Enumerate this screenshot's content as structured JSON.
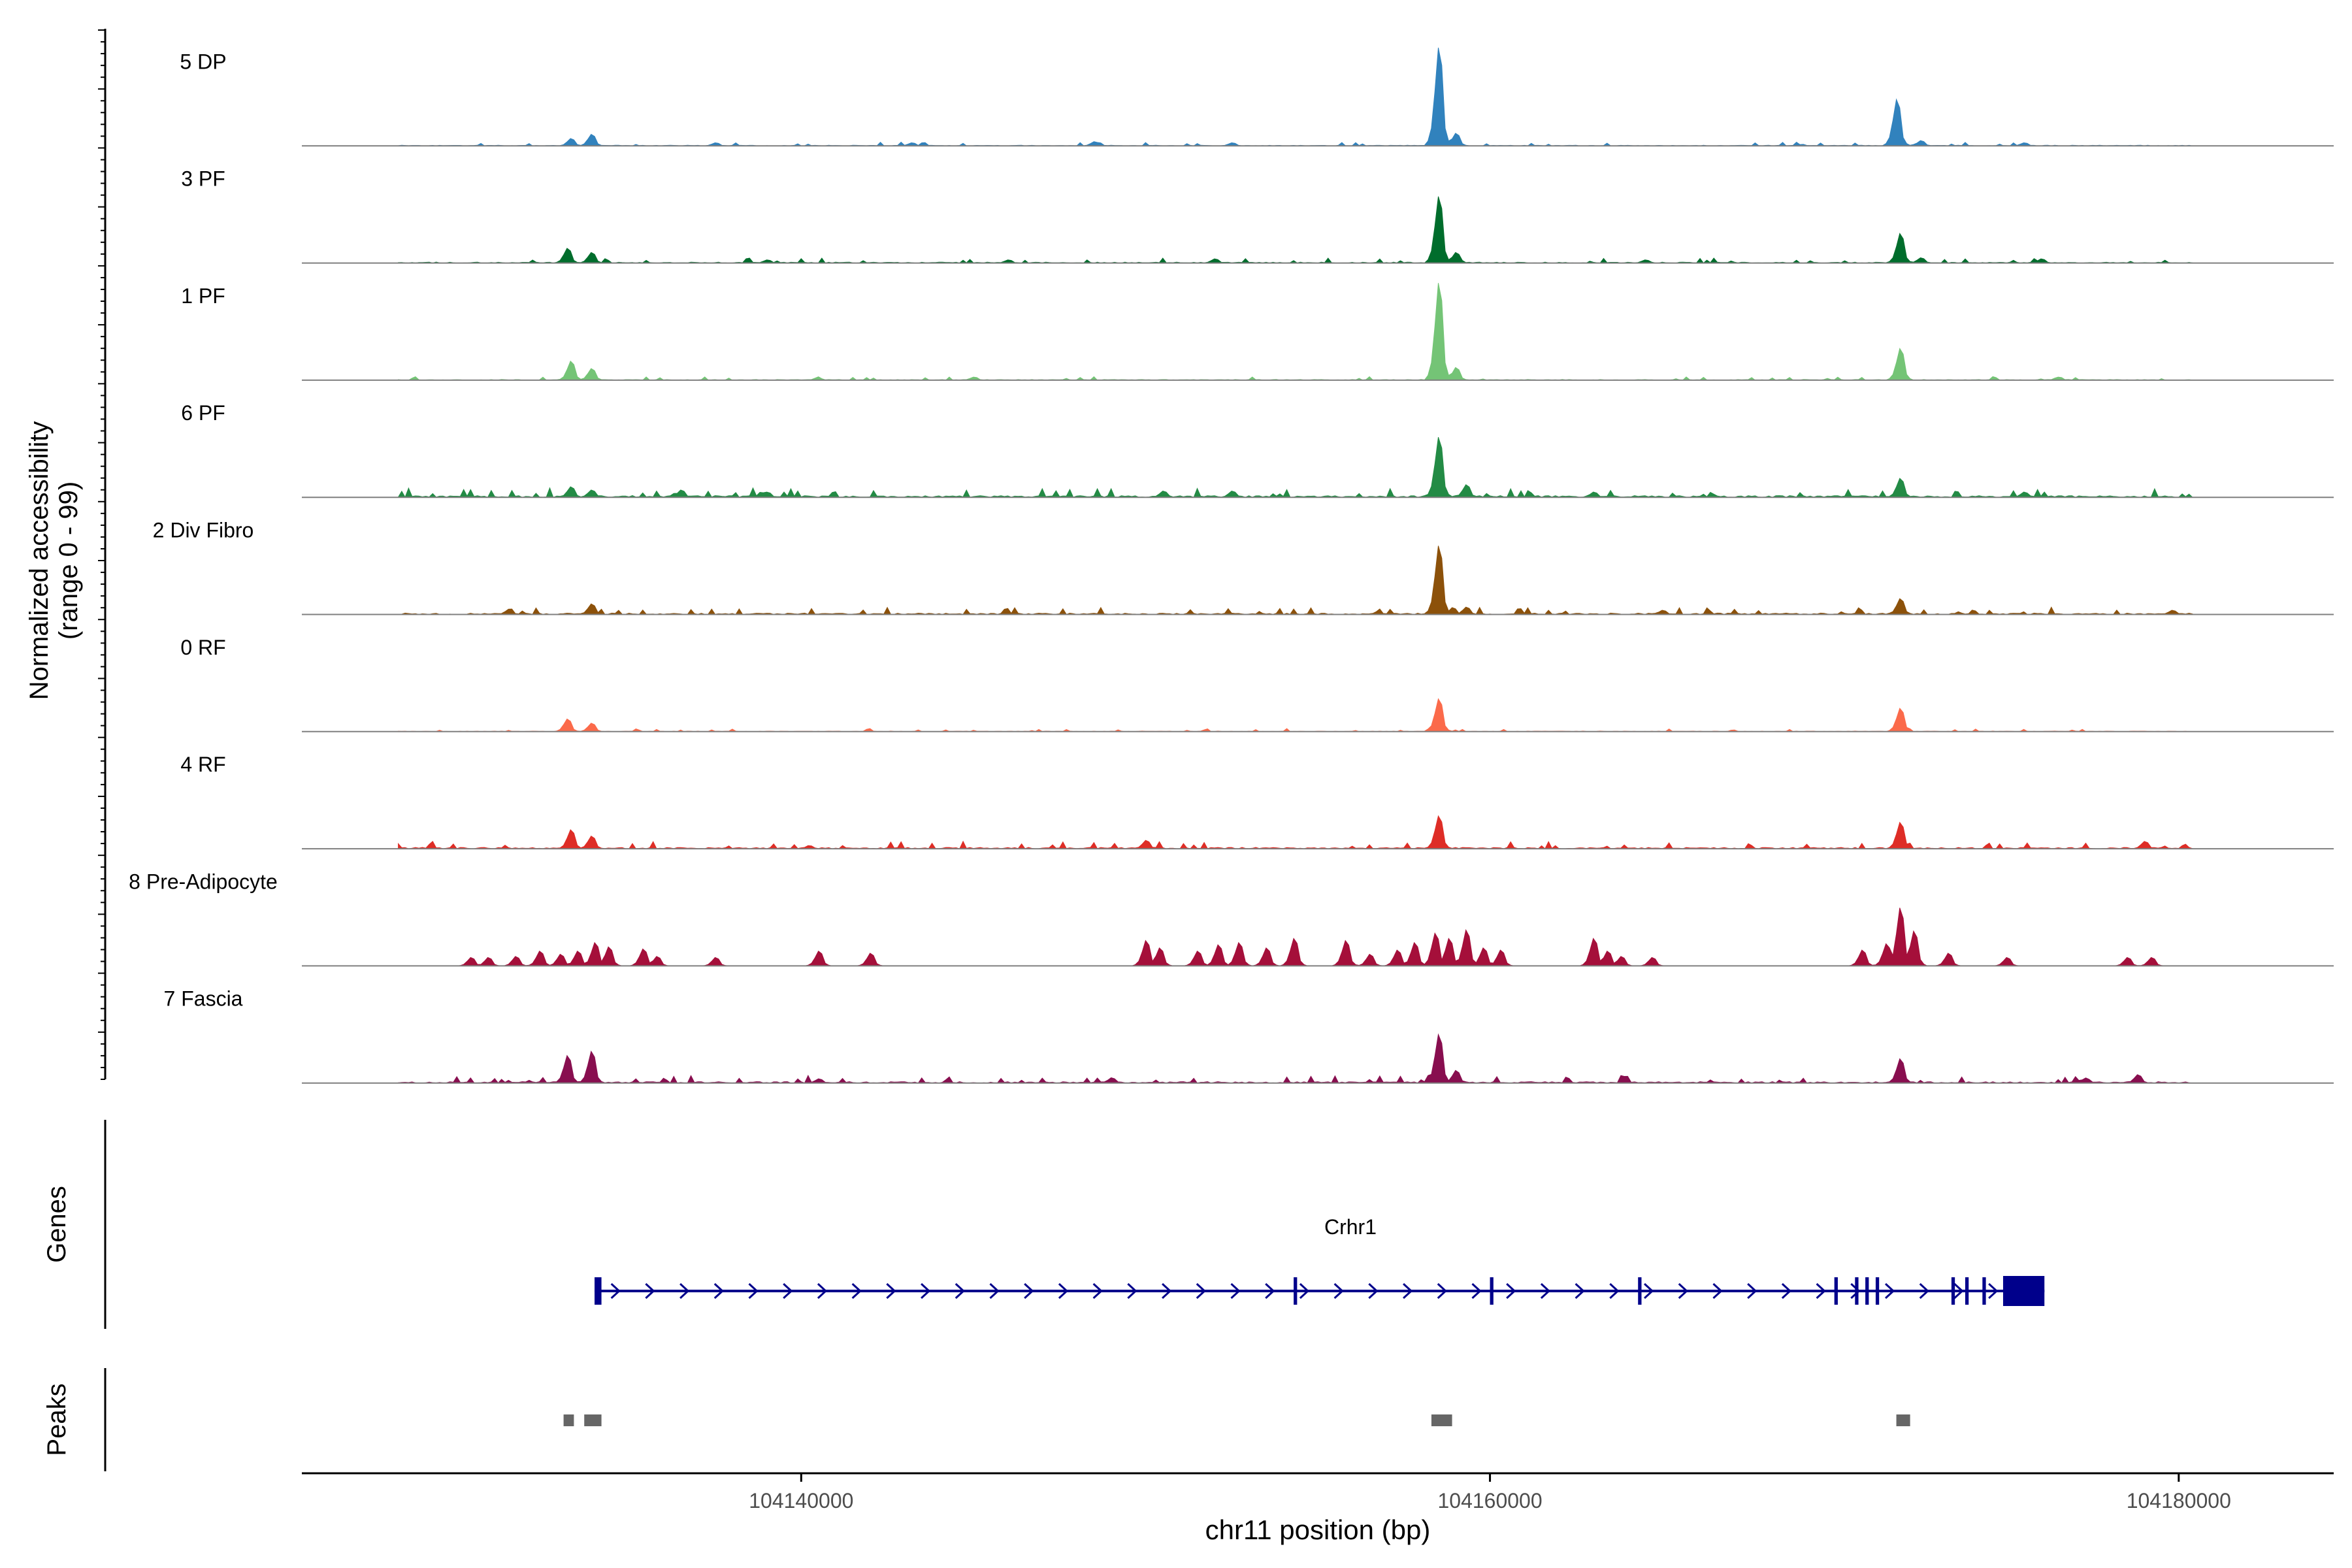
{
  "chart_data": {
    "type": "area",
    "title": "",
    "ylabel": "Normalized accessibility",
    "ylabel_range": "(range 0 - 99)",
    "xlabel": "chr11 position (bp)",
    "xlim": [
      104125500,
      104184500
    ],
    "ylim": [
      0,
      99
    ],
    "x_ticks": [
      {
        "value": 104140000,
        "label": "104140000"
      },
      {
        "value": 104160000,
        "label": "104160000"
      },
      {
        "value": 104180000,
        "label": "104180000"
      }
    ],
    "data_range": [
      104128300,
      104180400
    ],
    "peak_shape": {
      "x_offsets": [
        -300,
        -200,
        -100,
        -50,
        0,
        50,
        100,
        200,
        300
      ],
      "weights": [
        0.05,
        0.18,
        0.55,
        0.82,
        1.0,
        0.82,
        0.55,
        0.18,
        0.05
      ]
    },
    "series": [
      {
        "name": "5 DP",
        "color": "#3182bd",
        "noise": 1.2,
        "peaks": [
          [
            104133300,
            7
          ],
          [
            104133900,
            11
          ],
          [
            104137500,
            3
          ],
          [
            104143200,
            3
          ],
          [
            104148500,
            4
          ],
          [
            104152500,
            3
          ],
          [
            104158500,
            93
          ],
          [
            104159000,
            12
          ],
          [
            104171800,
            44
          ],
          [
            104172500,
            5
          ],
          [
            104175500,
            3
          ]
        ]
      },
      {
        "name": "3 PF",
        "color": "#006d2c",
        "noise": 1.6,
        "peaks": [
          [
            104133200,
            14
          ],
          [
            104133900,
            10
          ],
          [
            104139000,
            3
          ],
          [
            104146000,
            3
          ],
          [
            104152000,
            4
          ],
          [
            104158500,
            63
          ],
          [
            104159000,
            10
          ],
          [
            104164500,
            3
          ],
          [
            104171900,
            28
          ],
          [
            104172500,
            5
          ],
          [
            104176000,
            4
          ]
        ]
      },
      {
        "name": "1 PF",
        "color": "#74c476",
        "noise": 1.2,
        "peaks": [
          [
            104133300,
            18
          ],
          [
            104133900,
            11
          ],
          [
            104145000,
            3
          ],
          [
            104158500,
            92
          ],
          [
            104159000,
            12
          ],
          [
            104171900,
            30
          ],
          [
            104176500,
            3
          ]
        ]
      },
      {
        "name": "6 PF",
        "color": "#238b45",
        "noise": 3.0,
        "peaks": [
          [
            104133300,
            10
          ],
          [
            104133900,
            7
          ],
          [
            104136500,
            7
          ],
          [
            104139000,
            5
          ],
          [
            104150500,
            6
          ],
          [
            104152500,
            6
          ],
          [
            104158500,
            57
          ],
          [
            104159300,
            12
          ],
          [
            104163000,
            5
          ],
          [
            104171900,
            18
          ],
          [
            104175500,
            5
          ]
        ]
      },
      {
        "name": "2 Div Fibro",
        "color": "#8c510a",
        "noise": 2.4,
        "peaks": [
          [
            104131500,
            5
          ],
          [
            104133900,
            10
          ],
          [
            104158500,
            65
          ],
          [
            104159300,
            7
          ],
          [
            104165000,
            4
          ],
          [
            104171900,
            15
          ],
          [
            104179800,
            4
          ]
        ]
      },
      {
        "name": "0 RF",
        "color": "#fb6a4a",
        "noise": 1.0,
        "peaks": [
          [
            104133200,
            12
          ],
          [
            104133900,
            8
          ],
          [
            104158500,
            31
          ],
          [
            104171900,
            22
          ]
        ]
      },
      {
        "name": "4 RF",
        "color": "#de2d26",
        "noise": 2.4,
        "peaks": [
          [
            104133300,
            18
          ],
          [
            104133900,
            12
          ],
          [
            104150000,
            8
          ],
          [
            104158500,
            31
          ],
          [
            104171900,
            25
          ],
          [
            104179000,
            7
          ]
        ]
      },
      {
        "name": "8 Pre-Adipocyte",
        "color": "#a50f3a",
        "noise": 0,
        "peaks": [
          [
            104130400,
            8
          ],
          [
            104130900,
            8
          ],
          [
            104131700,
            9
          ],
          [
            104132400,
            14
          ],
          [
            104133000,
            11
          ],
          [
            104133500,
            14
          ],
          [
            104134000,
            22
          ],
          [
            104134400,
            18
          ],
          [
            104135400,
            16
          ],
          [
            104135800,
            9
          ],
          [
            104137500,
            8
          ],
          [
            104140500,
            14
          ],
          [
            104142000,
            12
          ],
          [
            104150000,
            24
          ],
          [
            104150400,
            17
          ],
          [
            104151500,
            14
          ],
          [
            104152100,
            20
          ],
          [
            104152700,
            22
          ],
          [
            104153500,
            17
          ],
          [
            104154300,
            26
          ],
          [
            104155800,
            24
          ],
          [
            104156500,
            11
          ],
          [
            104157300,
            15
          ],
          [
            104157800,
            22
          ],
          [
            104158400,
            31
          ],
          [
            104158800,
            26
          ],
          [
            104159300,
            34
          ],
          [
            104159800,
            17
          ],
          [
            104160300,
            15
          ],
          [
            104163000,
            26
          ],
          [
            104163400,
            14
          ],
          [
            104163800,
            9
          ],
          [
            104164700,
            8
          ],
          [
            104170800,
            15
          ],
          [
            104171500,
            21
          ],
          [
            104171900,
            55
          ],
          [
            104172300,
            33
          ],
          [
            104173300,
            12
          ],
          [
            104175000,
            8
          ],
          [
            104178500,
            8
          ],
          [
            104179200,
            8
          ]
        ]
      },
      {
        "name": "7 Fascia",
        "color": "#880e4f",
        "noise": 2.4,
        "peaks": [
          [
            104133200,
            26
          ],
          [
            104133900,
            30
          ],
          [
            104140500,
            4
          ],
          [
            104149000,
            5
          ],
          [
            104158500,
            46
          ],
          [
            104159000,
            12
          ],
          [
            104171900,
            23
          ],
          [
            104178800,
            8
          ]
        ]
      }
    ],
    "genes_label": "Genes",
    "gene": {
      "name": "Crhr1",
      "color": "#00008b",
      "start": 104134000,
      "end": 104176100,
      "strand": "+",
      "exons": [
        [
          104134000,
          104134200
        ],
        [
          104154300,
          104154400
        ],
        [
          104160000,
          104160100
        ],
        [
          104164300,
          104164400
        ],
        [
          104170000,
          104170100
        ],
        [
          104170600,
          104170700
        ],
        [
          104170900,
          104171000
        ],
        [
          104171200,
          104171300
        ],
        [
          104173400,
          104173500
        ],
        [
          104173800,
          104173900
        ],
        [
          104174300,
          104174400
        ],
        [
          104174900,
          104176100
        ]
      ]
    },
    "peaks_label": "Peaks",
    "peak_regions": [
      [
        104133100,
        104133400
      ],
      [
        104133700,
        104134200
      ],
      [
        104158300,
        104158900
      ],
      [
        104171800,
        104172200
      ]
    ],
    "peak_color": "#666666"
  }
}
